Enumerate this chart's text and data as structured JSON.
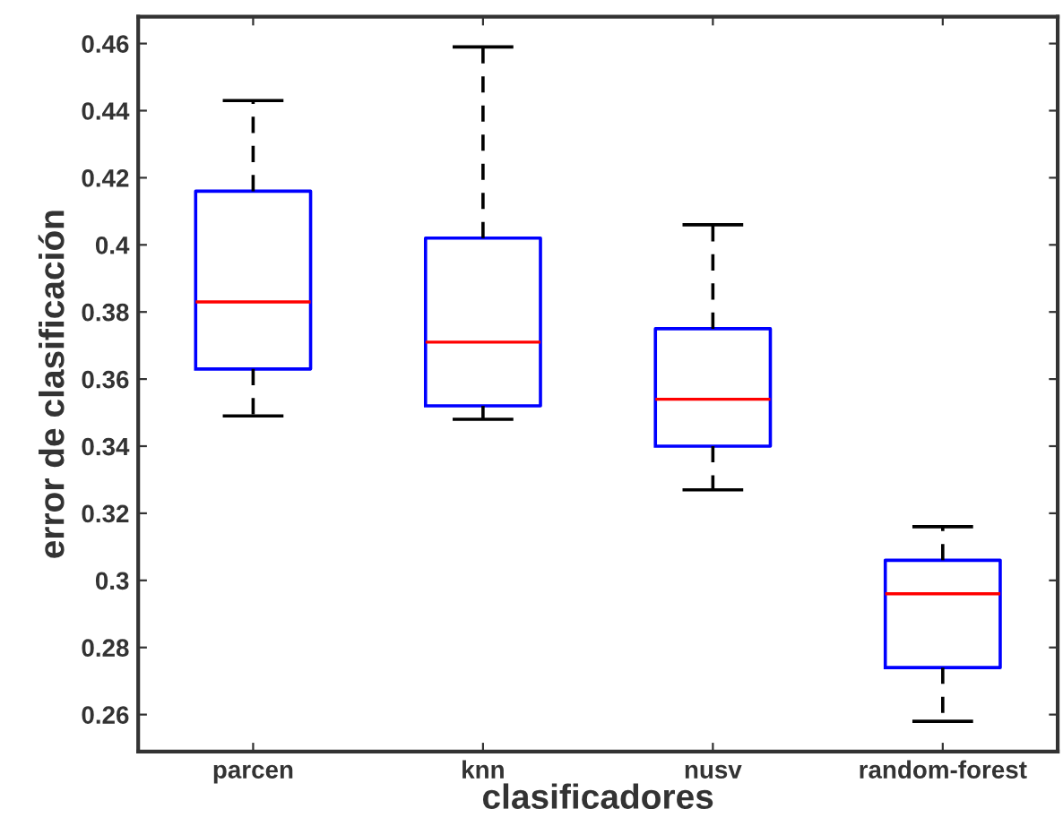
{
  "chart_data": {
    "type": "box",
    "xlabel": "clasificadores",
    "ylabel": "error de clasificación",
    "categories": [
      "parcen",
      "knn",
      "nusv",
      "random-forest"
    ],
    "series": [
      {
        "color": "#0000ff",
        "boxes": [
          {
            "low": 0.349,
            "q1": 0.363,
            "median": 0.383,
            "q3": 0.416,
            "high": 0.443
          },
          {
            "low": 0.348,
            "q1": 0.352,
            "median": 0.371,
            "q3": 0.402,
            "high": 0.459
          },
          {
            "low": 0.327,
            "q1": 0.34,
            "median": 0.354,
            "q3": 0.375,
            "high": 0.406
          },
          {
            "low": 0.258,
            "q1": 0.274,
            "median": 0.296,
            "q3": 0.306,
            "high": 0.316
          }
        ]
      }
    ],
    "ylim": [
      0.249,
      0.468
    ],
    "yticks": [
      0.26,
      0.28,
      0.3,
      0.32,
      0.34,
      0.36,
      0.38,
      0.4,
      0.42,
      0.44,
      0.46
    ],
    "grid": false,
    "legend": false
  }
}
